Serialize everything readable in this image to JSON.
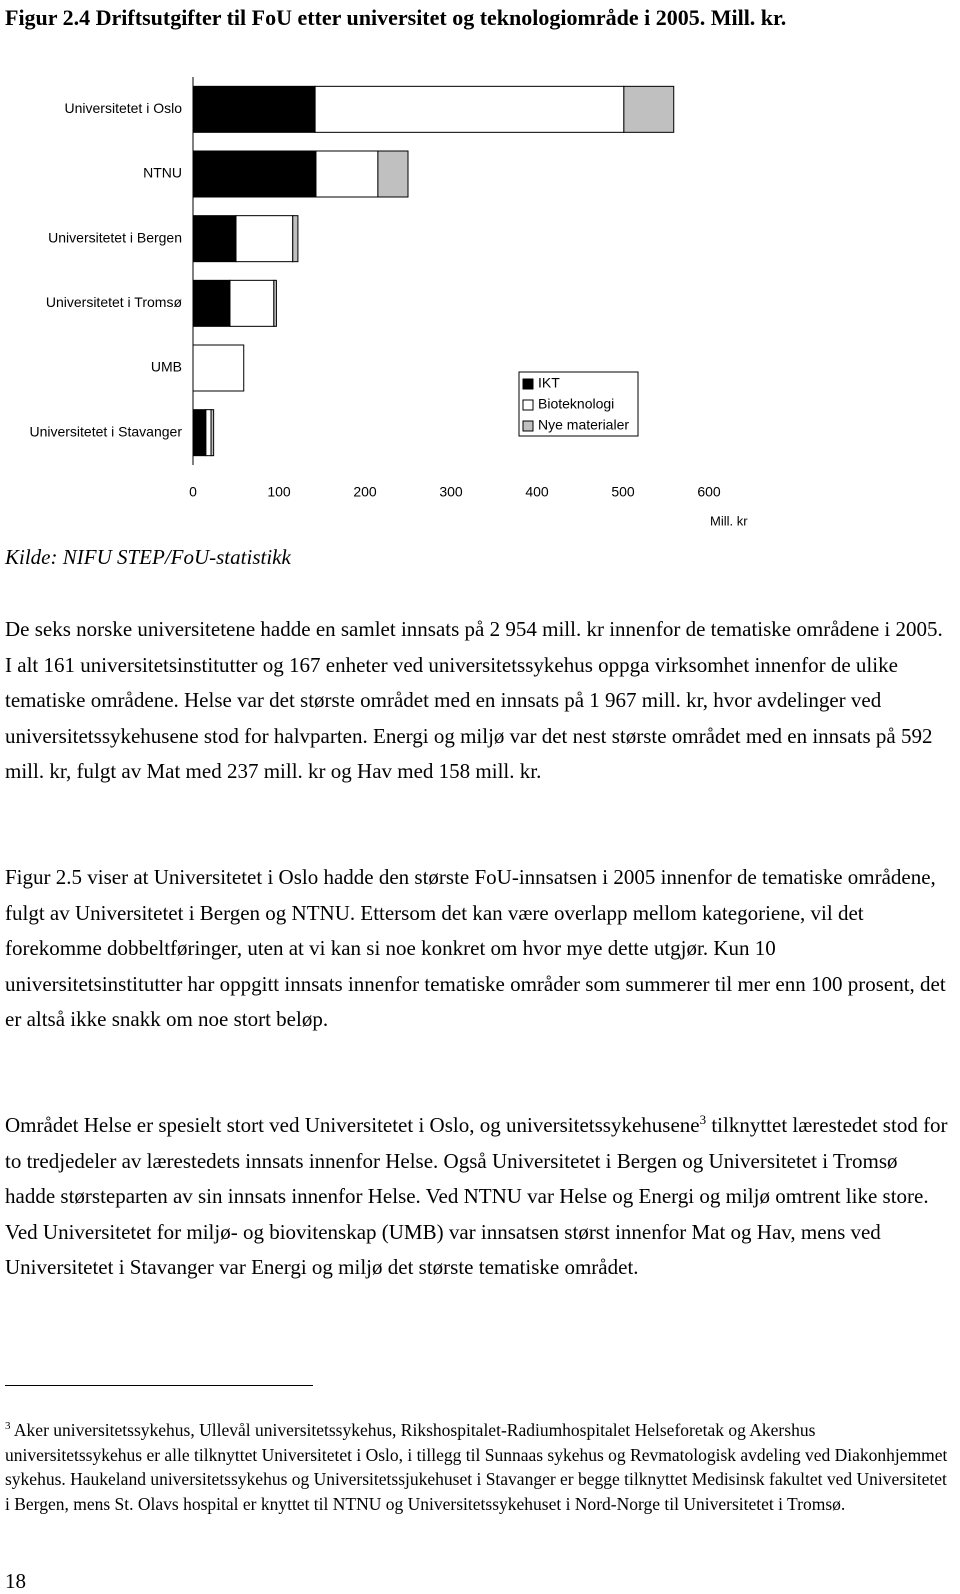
{
  "chart_data": {
    "type": "bar",
    "orientation": "horizontal",
    "stacked": true,
    "title": "Figur 2.4 Driftsutgifter til FoU etter universitet og teknologiområde i 2005. Mill. kr.",
    "categories": [
      "Universitetet i Oslo",
      "NTNU",
      "Universitetet i Bergen",
      "Universitetet i Tromsø",
      "UMB",
      "Universitetet i Stavanger"
    ],
    "series": [
      {
        "name": "IKT",
        "color": "#000000",
        "values": [
          142,
          143,
          50,
          43,
          0,
          15
        ]
      },
      {
        "name": "Bioteknologi",
        "color": "#ffffff",
        "values": [
          359,
          72,
          66,
          51,
          59,
          6
        ]
      },
      {
        "name": "Nye materialer",
        "color": "#c0c0c0",
        "values": [
          58,
          35,
          6,
          3,
          0,
          3
        ]
      }
    ],
    "xlim": [
      0,
      600
    ],
    "xticks": [
      0,
      100,
      200,
      300,
      400,
      500,
      600
    ],
    "x_label": "Mill. kr",
    "legend": "center-right",
    "grid": false,
    "source": "Kilde: NIFU STEP/FoU-statistikk"
  },
  "paragraphs": [
    "De seks norske universitetene hadde en samlet innsats på 2 954 mill. kr innenfor de tematiske områdene i 2005. I alt 161 universitetsinstitutter og 167 enheter ved universitetssykehus oppga virksomhet innenfor de ulike tematiske områdene. Helse var det største området med en innsats på 1 967 mill. kr, hvor avdelinger ved universitetssykehusene stod for halvparten. Energi og miljø var det nest største området med en innsats på 592 mill. kr, fulgt av Mat med 237 mill. kr og Hav med 158 mill. kr.",
    "Figur 2.5 viser at Universitetet i Oslo hadde den største FoU-innsatsen i 2005 innenfor de tematiske områdene, fulgt av Universitetet i Bergen og NTNU. Ettersom det kan være overlapp mellom kategoriene, vil det forekomme dobbeltføringer, uten at vi kan si noe konkret om hvor mye dette utgjør. Kun 10 universitetsinstitutter har oppgitt innsats innenfor tematiske områder som summerer til mer enn 100 prosent, det er altså ikke snakk om noe stort beløp.",
    {
      "text_before": "Området Helse er spesielt stort ved Universitetet i Oslo, og universitetssykehusene",
      "footnote_ref": "3",
      "text_after": "tilknyttet lærestedet stod for to tredjedeler av lærestedets innsats innenfor Helse. Også Universitetet i Bergen og Universitetet i Tromsø hadde størsteparten av sin innsats innenfor Helse. Ved NTNU var Helse og Energi og miljø omtrent like store. Ved Universitetet for miljø- og biovitenskap (UMB) var innsatsen størst innenfor Mat og Hav, mens ved Universitetet i Stavanger var Energi og miljø det største tematiske området."
    }
  ],
  "footnote": {
    "mark": "3",
    "text": "Aker universitetssykehus, Ullevål universitetssykehus, Rikshospitalet-Radiumhospitalet Helseforetak og Akershus universitetssykehus er alle tilknyttet Universitetet i Oslo, i tillegg til Sunnaas sykehus og Revmatologisk avdeling ved Diakonhjemmet sykehus. Haukeland universitetssykehus og Universitetssjukehuset i Stavanger er begge tilknyttet Medisinsk fakultet ved Universitetet i Bergen, mens St. Olavs hospital er knyttet til NTNU og Universitetssykehuset i Nord-Norge til Universitetet i Tromsø."
  },
  "page_number": "18"
}
